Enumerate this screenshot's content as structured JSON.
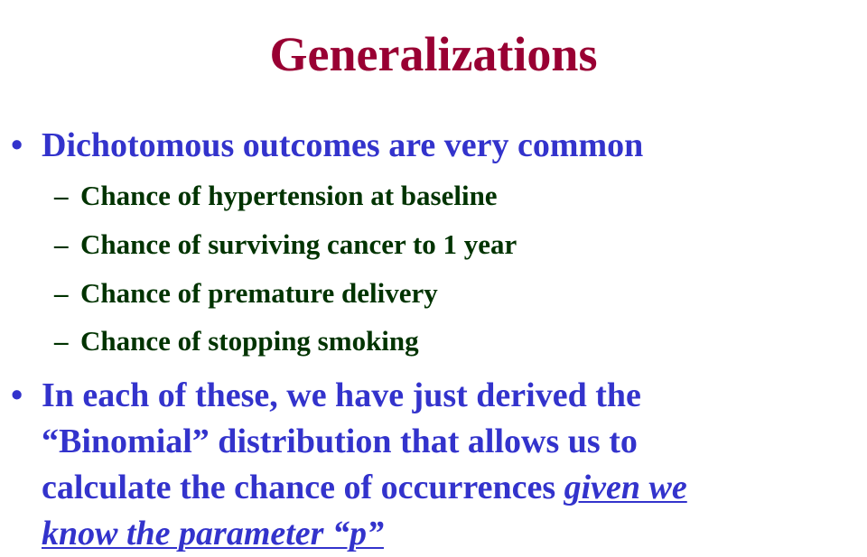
{
  "slide": {
    "title": "Generalizations",
    "bullet_1": {
      "marker": "•",
      "text": "Dichotomous outcomes are very common",
      "sub_items": [
        {
          "marker": "–",
          "text": "Chance of hypertension at baseline"
        },
        {
          "marker": "–",
          "text": "Chance of surviving cancer to 1 year"
        },
        {
          "marker": "–",
          "text": "Chance of premature delivery"
        },
        {
          "marker": "–",
          "text": "Chance of stopping smoking"
        }
      ]
    },
    "bullet_2": {
      "marker": "•",
      "line_1": "In each of these, we have just derived the",
      "line_2": "“Binomial” distribution that allows us to",
      "line_3": "calculate the chance of occurrences ",
      "emphasis_1": "given we",
      "emphasis_2": "know the parameter “p”"
    }
  },
  "colors": {
    "title": "#990033",
    "bullet": "#3333cc",
    "sub_item": "#003300",
    "background": "#ffffff"
  }
}
